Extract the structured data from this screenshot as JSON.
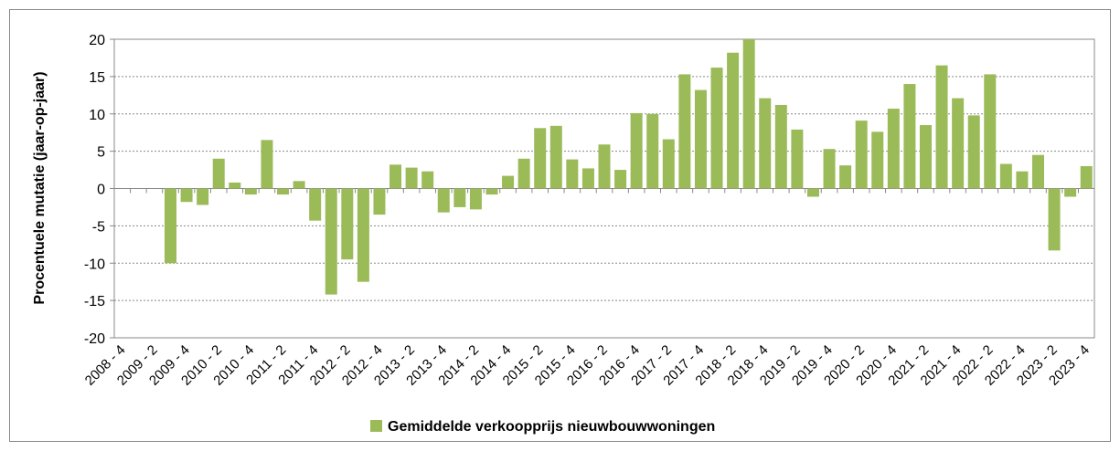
{
  "chart_data": {
    "type": "bar",
    "y_label": "Procentuele mutatie (jaar-op-jaar)",
    "categories": [
      "2008 - 4",
      null,
      "2009 - 2",
      null,
      "2009 - 4",
      null,
      "2010 - 2",
      null,
      "2010 - 4",
      null,
      "2011 - 2",
      null,
      "2011 - 4",
      null,
      "2012 - 2",
      null,
      "2012 - 4",
      null,
      "2013 - 2",
      null,
      "2013 - 4",
      null,
      "2014 - 2",
      null,
      "2014 - 4",
      null,
      "2015 - 2",
      null,
      "2015 - 4",
      null,
      "2016 - 2",
      null,
      "2016 - 4",
      null,
      "2017 - 2",
      null,
      "2017 - 4",
      null,
      "2018 - 2",
      null,
      "2018 - 4",
      null,
      "2019 - 2",
      null,
      "2019 - 4",
      null,
      "2020 - 2",
      null,
      "2020 - 4",
      null,
      "2021 - 2",
      null,
      "2021 - 4",
      null,
      "2022 - 2",
      null,
      "2022 - 4",
      null,
      "2023 - 2",
      null,
      "2023 - 4"
    ],
    "series": [
      {
        "name": "Gemiddelde verkoopprijs nieuwbouwwoningen",
        "color": "#9bbb59",
        "values": [
          null,
          null,
          null,
          -10,
          -1.8,
          -2.2,
          4,
          0.8,
          -0.8,
          6.5,
          -0.8,
          1,
          -4.3,
          -14.2,
          -9.5,
          -12.5,
          -3.5,
          3.2,
          2.8,
          2.3,
          -3.2,
          -2.5,
          -2.8,
          -0.8,
          1.7,
          4,
          8.1,
          8.4,
          3.9,
          2.7,
          5.9,
          2.5,
          10.1,
          10,
          6.6,
          15.3,
          13.2,
          16.2,
          18.2,
          20,
          12.1,
          11.2,
          7.9,
          -1.1,
          5.3,
          3.1,
          9.1,
          7.6,
          10.7,
          14,
          8.5,
          16.5,
          12.1,
          9.8,
          15.3,
          3.3,
          2.3,
          4.5,
          -8.3,
          -1.1,
          3
        ]
      }
    ],
    "ylim": [
      -20,
      20
    ],
    "yticks": [
      -20,
      -15,
      -10,
      -5,
      0,
      5,
      10,
      15,
      20
    ],
    "grid": true,
    "legend": "bottom"
  }
}
